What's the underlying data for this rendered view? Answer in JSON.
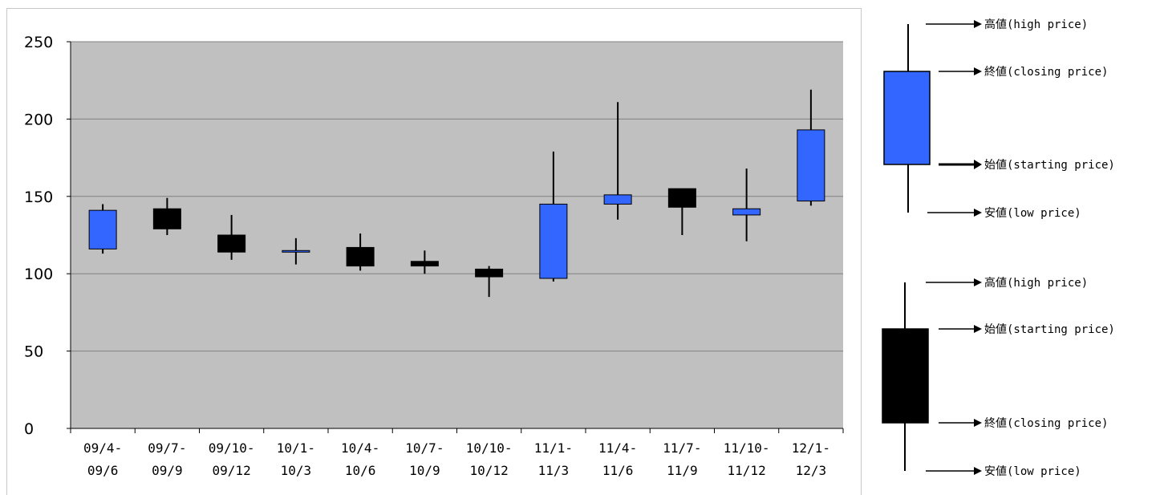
{
  "chart_data": {
    "type": "candlestick",
    "ylim": [
      0,
      250
    ],
    "yticks": [
      0,
      50,
      100,
      150,
      200,
      250
    ],
    "grid": true,
    "categories": [
      [
        "09/4-",
        "09/6"
      ],
      [
        "09/7-",
        "09/9"
      ],
      [
        "09/10-",
        "09/12"
      ],
      [
        "10/1-",
        "10/3"
      ],
      [
        "10/4-",
        "10/6"
      ],
      [
        "10/7-",
        "10/9"
      ],
      [
        "10/10-",
        "10/12"
      ],
      [
        "11/1-",
        "11/3"
      ],
      [
        "11/4-",
        "11/6"
      ],
      [
        "11/7-",
        "11/9"
      ],
      [
        "11/10-",
        "11/12"
      ],
      [
        "12/1-",
        "12/3"
      ]
    ],
    "candles": [
      {
        "open": 116,
        "close": 141,
        "high": 145,
        "low": 113
      },
      {
        "open": 142,
        "close": 129,
        "high": 149,
        "low": 125
      },
      {
        "open": 125,
        "close": 114,
        "high": 138,
        "low": 109
      },
      {
        "open": 114,
        "close": 115,
        "high": 123,
        "low": 106
      },
      {
        "open": 117,
        "close": 105,
        "high": 126,
        "low": 102
      },
      {
        "open": 108,
        "close": 105,
        "high": 115,
        "low": 100
      },
      {
        "open": 103,
        "close": 98,
        "high": 105,
        "low": 85
      },
      {
        "open": 97,
        "close": 145,
        "high": 179,
        "low": 95
      },
      {
        "open": 145,
        "close": 151,
        "high": 211,
        "low": 135
      },
      {
        "open": 155,
        "close": 143,
        "high": 155,
        "low": 125
      },
      {
        "open": 138,
        "close": 142,
        "high": 168,
        "low": 121
      },
      {
        "open": 147,
        "close": 193,
        "high": 219,
        "low": 144
      }
    ]
  },
  "colors": {
    "up": "#3366ff",
    "down": "#000000",
    "plot_bg": "#c0c0c0",
    "grid": "#808080"
  },
  "legend": {
    "up": {
      "high": "高値(high price)",
      "close": "終値(closing price)",
      "open": "始値(starting price)",
      "low": "安値(low price)"
    },
    "down": {
      "high": "高値(high price)",
      "open": "始値(starting price)",
      "close": "終値(closing price)",
      "low": "安値(low price)"
    }
  }
}
